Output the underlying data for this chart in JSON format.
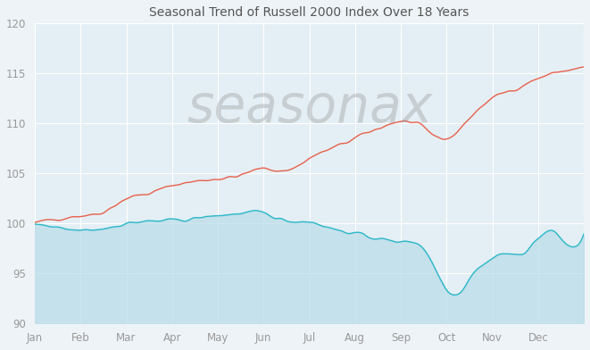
{
  "title": "Seasonal Trend of Russell 2000 Index Over 18 Years",
  "title_fontsize": 10,
  "background_color": "#eef3f7",
  "plot_bg_color": "#e4eff5",
  "ylim": [
    90,
    120
  ],
  "yticks": [
    90,
    95,
    100,
    105,
    110,
    115,
    120
  ],
  "months": [
    "Jan",
    "Feb",
    "Mar",
    "Apr",
    "May",
    "Jun",
    "Jul",
    "Aug",
    "Sep",
    "Oct",
    "Nov",
    "Dec"
  ],
  "watermark": "seasonax",
  "watermark_color": "#999999",
  "watermark_alpha": 0.38,
  "red_line_color": "#e8604a",
  "cyan_line_color": "#2ab8c8",
  "cyan_fill_color": "#b8dce8",
  "cyan_fill_alpha": 0.7,
  "grid_color": "#ffffff",
  "tick_color": "#999999",
  "red_key_values": [
    [
      0.0,
      100.0
    ],
    [
      0.5,
      100.5
    ],
    [
      1.0,
      100.8
    ],
    [
      1.5,
      101.2
    ],
    [
      2.0,
      102.5
    ],
    [
      2.5,
      103.0
    ],
    [
      3.0,
      103.8
    ],
    [
      3.5,
      104.2
    ],
    [
      4.0,
      104.5
    ],
    [
      4.5,
      104.8
    ],
    [
      5.0,
      105.5
    ],
    [
      5.5,
      105.3
    ],
    [
      6.0,
      106.5
    ],
    [
      6.5,
      107.5
    ],
    [
      7.0,
      108.5
    ],
    [
      7.5,
      109.5
    ],
    [
      8.0,
      110.2
    ],
    [
      8.5,
      109.5
    ],
    [
      9.0,
      108.5
    ],
    [
      9.5,
      110.5
    ],
    [
      10.0,
      112.5
    ],
    [
      10.5,
      113.5
    ],
    [
      11.0,
      114.5
    ],
    [
      11.5,
      115.2
    ],
    [
      12.0,
      115.5
    ]
  ],
  "cyan_key_values": [
    [
      0.0,
      100.0
    ],
    [
      0.5,
      99.5
    ],
    [
      1.0,
      99.3
    ],
    [
      1.5,
      99.5
    ],
    [
      2.0,
      100.0
    ],
    [
      2.5,
      100.2
    ],
    [
      3.0,
      100.3
    ],
    [
      3.5,
      100.5
    ],
    [
      4.0,
      100.8
    ],
    [
      4.5,
      101.0
    ],
    [
      5.0,
      101.0
    ],
    [
      5.5,
      100.3
    ],
    [
      6.0,
      100.2
    ],
    [
      6.5,
      99.5
    ],
    [
      7.0,
      99.0
    ],
    [
      7.5,
      98.5
    ],
    [
      8.0,
      98.2
    ],
    [
      8.5,
      97.5
    ],
    [
      9.0,
      93.5
    ],
    [
      9.3,
      93.2
    ],
    [
      9.5,
      94.5
    ],
    [
      10.0,
      96.5
    ],
    [
      10.3,
      97.0
    ],
    [
      10.5,
      96.8
    ],
    [
      11.0,
      98.5
    ],
    [
      11.3,
      99.2
    ],
    [
      11.5,
      98.5
    ],
    [
      12.0,
      99.0
    ]
  ]
}
